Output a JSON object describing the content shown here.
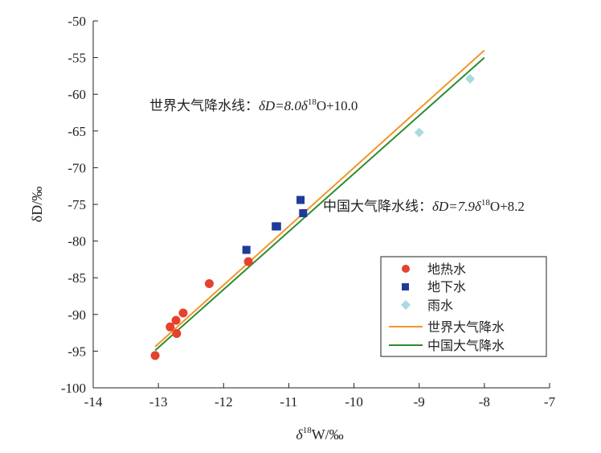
{
  "chart_data": {
    "type": "scatter",
    "xlabel": {
      "prefix": "δ",
      "sup": "18",
      "suffix": "W/‰"
    },
    "ylabel": "δD/‰",
    "xlim": [
      -14,
      -7
    ],
    "ylim": [
      -100,
      -50
    ],
    "xticks": [
      -14,
      -13,
      -12,
      -11,
      -10,
      -9,
      -8,
      -7
    ],
    "yticks": [
      -50,
      -55,
      -60,
      -65,
      -70,
      -75,
      -80,
      -85,
      -90,
      -95,
      -100
    ],
    "series": [
      {
        "name": "地热水",
        "marker": "circle",
        "color": "#e5412d",
        "points": [
          [
            -13.05,
            -95.6
          ],
          [
            -12.82,
            -91.7
          ],
          [
            -12.73,
            -90.8
          ],
          [
            -12.72,
            -92.6
          ],
          [
            -12.62,
            -89.8
          ],
          [
            -12.22,
            -85.8
          ],
          [
            -11.62,
            -82.8
          ]
        ]
      },
      {
        "name": "地下水",
        "marker": "square",
        "color": "#1f3b9a",
        "points": [
          [
            -11.65,
            -81.2
          ],
          [
            -11.2,
            -78.0
          ],
          [
            -11.18,
            -78.0
          ],
          [
            -10.82,
            -74.4
          ],
          [
            -10.78,
            -76.2
          ]
        ]
      },
      {
        "name": "雨水",
        "marker": "diamond",
        "color": "#a6dbe0",
        "points": [
          [
            -9.0,
            -65.2
          ],
          [
            -8.22,
            -57.9
          ]
        ]
      }
    ],
    "lines": [
      {
        "name": "世界大气降水",
        "color": "#f0962a",
        "slope": 8.0,
        "intercept": 10.0,
        "x_range": [
          -13.05,
          -8.0
        ]
      },
      {
        "name": "中国大气降水",
        "color": "#2e8b2e",
        "slope": 7.9,
        "intercept": 8.2,
        "x_range": [
          -13.05,
          -8.0
        ]
      }
    ],
    "annotations": {
      "gmwl": {
        "prefix": "世界大气降水线：",
        "d": "δD=8.0δ",
        "sup": "18",
        "rest": "O+10.0"
      },
      "cmwl": {
        "prefix": "中国大气降水线：",
        "d": "δD=7.9δ",
        "sup": "18",
        "rest": "O+8.2"
      }
    },
    "legend": {
      "position": "bottom-right",
      "items": [
        "地热水",
        "地下水",
        "雨水",
        "世界大气降水",
        "中国大气降水"
      ]
    }
  }
}
